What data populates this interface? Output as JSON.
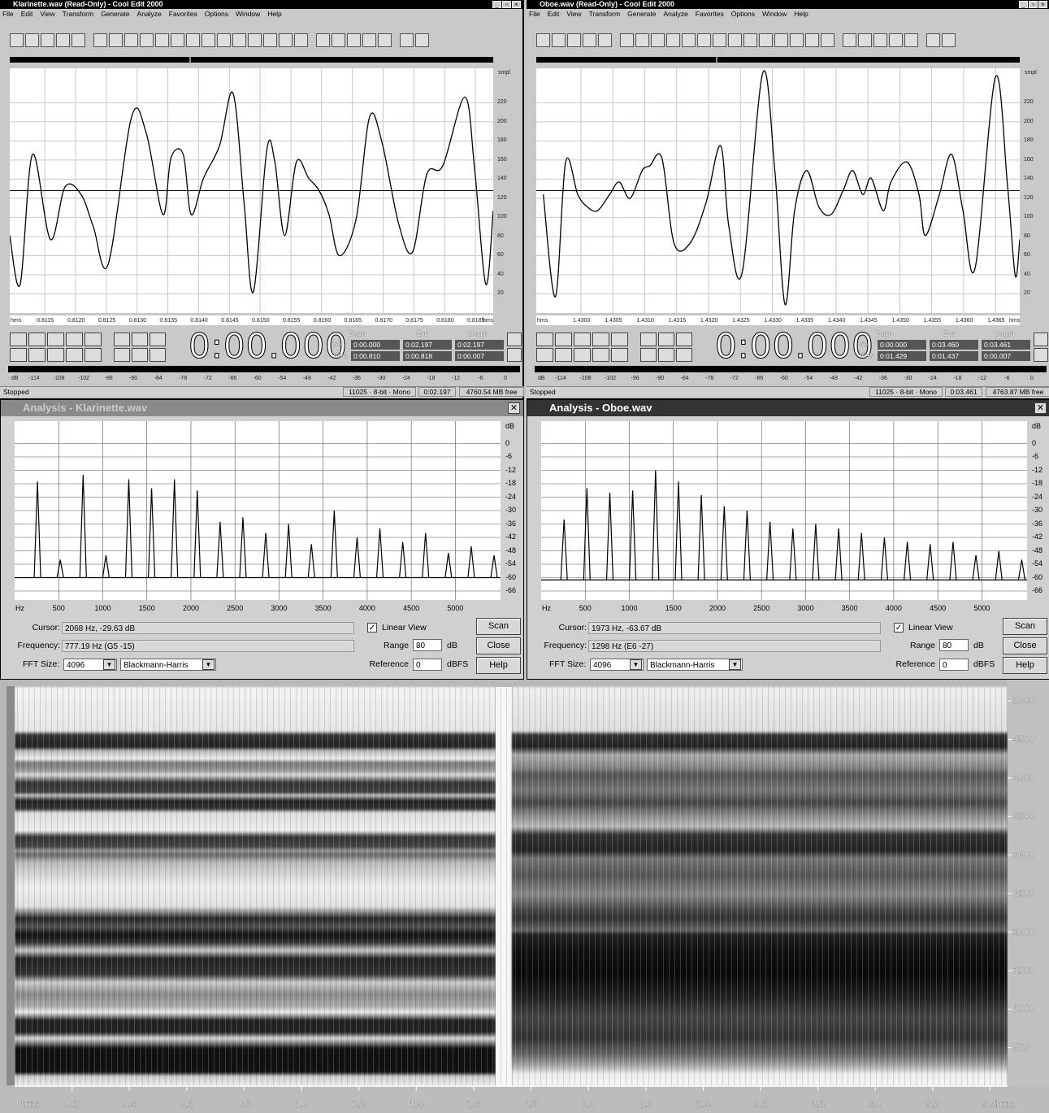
{
  "menu": [
    "File",
    "Edit",
    "View",
    "Transform",
    "Generate",
    "Analyze",
    "Favorites",
    "Options",
    "Window",
    "Help"
  ],
  "selection_headers": [
    "Begin",
    "End",
    "Length"
  ],
  "windows": [
    {
      "title": "Klarinette.wav (Read-Only) - Cool Edit 2000",
      "waveform": {
        "type": "line",
        "y_unit": "smpl",
        "x_unit": "hms",
        "ylim": [
          0,
          256
        ],
        "yticks": [
          220,
          200,
          180,
          160,
          140,
          120,
          100,
          80,
          60,
          40,
          20
        ],
        "xlim": [
          0.81093,
          0.81879
        ],
        "xticks": [
          0.8115,
          {
            "value": 0.812,
            "label": "0.8120"
          },
          0.8125,
          {
            "value": 0.813,
            "label": "0.8130"
          },
          0.8135,
          {
            "value": 0.814,
            "label": "0.8140"
          },
          0.8145,
          {
            "value": 0.815,
            "label": "0.8150"
          },
          0.8155,
          {
            "value": 0.816,
            "label": "0.8160"
          },
          0.8165,
          {
            "value": 0.817,
            "label": "0.8170"
          },
          0.8175,
          {
            "value": 0.818,
            "label": "0.8180"
          },
          0.8185
        ],
        "x": [
          0.81093,
          0.8111,
          0.8113,
          0.81159,
          0.81183,
          0.81209,
          0.81229,
          0.81253,
          0.81291,
          0.81315,
          0.81342,
          0.81355,
          0.81375,
          0.81388,
          0.81408,
          0.81434,
          0.81456,
          0.81474,
          0.81489,
          0.81511,
          0.81524,
          0.8154,
          0.81559,
          0.81579,
          0.81596,
          0.81612,
          0.81629,
          0.81656,
          0.81678,
          0.81698,
          0.81725,
          0.81748,
          0.81771,
          0.81797,
          0.81833,
          0.81849,
          0.81867,
          0.81879
        ],
        "values": [
          81,
          30,
          166,
          77,
          132,
          124,
          90,
          51,
          205,
          188,
          103,
          162,
          166,
          103,
          141,
          175,
          230,
          115,
          22,
          171,
          158,
          81,
          158,
          141,
          128,
          103,
          60,
          98,
          205,
          179,
          94,
          64,
          145,
          154,
          226,
          149,
          30,
          107
        ]
      },
      "time_display": "0:00.000",
      "selection": [
        {
          "label": "Sel",
          "values": [
            "0:00.000",
            "0:02.197",
            "0:02.197"
          ]
        },
        {
          "label": "View",
          "values": [
            "0:00.810",
            "0:00.818",
            "0:00.007"
          ]
        }
      ],
      "meter": {
        "unit": "dB",
        "ticks": [
          -114,
          -108,
          -102,
          -96,
          -90,
          -84,
          -78,
          -72,
          -66,
          -60,
          -54,
          -48,
          -42,
          -36,
          -30,
          -24,
          -18,
          -12,
          -6,
          0
        ]
      },
      "status": {
        "state": "Stopped",
        "format": "11025 · 8-bit · Mono",
        "length": "0:02.197",
        "free": "4760.54 MB free"
      },
      "analysis": {
        "title": "Analysis - Klarinette.wav",
        "spectrum": {
          "type": "line",
          "y_unit": "dB",
          "x_unit": "Hz",
          "ylim": [
            -70,
            10
          ],
          "yticks": [
            0,
            -6,
            -12,
            -18,
            -24,
            -30,
            -36,
            -42,
            -48,
            -54,
            -60,
            -66
          ],
          "xlim": [
            0,
            5512.5
          ],
          "xticks": [
            500,
            1000,
            1500,
            2000,
            2500,
            3000,
            3500,
            4000,
            4500,
            5000
          ],
          "floor": -60,
          "freqs": [
            259,
            518,
            777,
            1036,
            1295,
            1554,
            1813,
            2072,
            2331,
            2590,
            2849,
            3108,
            3367,
            3626,
            3885,
            4144,
            4403,
            4662,
            4921,
            5180,
            5439
          ],
          "peaks": [
            -17,
            -52,
            -14,
            -50,
            -16,
            -20,
            -16,
            -21,
            -35,
            -33,
            -40,
            -36,
            -45,
            -30,
            -42,
            -38,
            -44,
            -40,
            -49,
            -46,
            -50
          ]
        },
        "cursor_label": "Cursor:",
        "cursor": "2068 Hz, -29.63 dB",
        "frequency_label": "Frequency:",
        "frequency": "777.19 Hz (G5 -15)",
        "fft_label": "FFT Size:",
        "fft_size": "4096",
        "window_fn": "Blackmann-Harris",
        "linear_view": "Linear View",
        "range_label": "Range",
        "range": "80",
        "range_unit": "dB",
        "reference_label": "Reference",
        "reference": "0",
        "reference_unit": "dBFS",
        "buttons": [
          "Scan",
          "Close",
          "Help"
        ]
      }
    },
    {
      "title": "Oboe.wav (Read-Only) - Cool Edit 2000",
      "waveform": {
        "type": "line",
        "y_unit": "smpl",
        "x_unit": "hms",
        "ylim": [
          0,
          256
        ],
        "yticks": [
          220,
          200,
          180,
          160,
          140,
          120,
          100,
          80,
          60,
          40,
          20
        ],
        "xlim": [
          1.4293,
          1.43688
        ],
        "xticks": [
          {
            "value": 1.43,
            "label": "1.4300"
          },
          1.4305,
          {
            "value": 1.431,
            "label": "1.4310"
          },
          1.4315,
          {
            "value": 1.432,
            "label": "1.4320"
          },
          1.4325,
          {
            "value": 1.433,
            "label": "1.4330"
          },
          1.4335,
          {
            "value": 1.434,
            "label": "1.4340"
          },
          1.4345,
          {
            "value": 1.435,
            "label": "1.4350"
          },
          1.4355,
          {
            "value": 1.436,
            "label": "1.4360"
          },
          1.4365
        ],
        "x": [
          1.42941,
          1.4296,
          1.42976,
          1.42995,
          1.4301,
          1.43026,
          1.43045,
          1.4306,
          1.43077,
          1.43096,
          1.43108,
          1.43127,
          1.43146,
          1.43171,
          1.43196,
          1.43219,
          1.43232,
          1.43253,
          1.43285,
          1.43304,
          1.4332,
          1.43335,
          1.43354,
          1.43373,
          1.43392,
          1.43411,
          1.43426,
          1.43442,
          1.43455,
          1.43474,
          1.43486,
          1.43511,
          1.4353,
          1.4354,
          1.43562,
          1.43581,
          1.43599,
          1.43618,
          1.4365,
          1.43669,
          1.43681,
          1.43688
        ],
        "values": [
          124,
          17,
          158,
          124,
          111,
          107,
          124,
          137,
          120,
          149,
          154,
          162,
          73,
          73,
          115,
          175,
          90,
          43,
          251,
          149,
          9,
          107,
          149,
          111,
          103,
          128,
          149,
          124,
          141,
          107,
          137,
          158,
          124,
          81,
          124,
          166,
          107,
          47,
          247,
          132,
          39,
          77
        ]
      },
      "time_display": "0:00.000",
      "selection": [
        {
          "label": "Sel",
          "values": [
            "0:00.000",
            "0:03.460",
            "0:03.461"
          ]
        },
        {
          "label": "View",
          "values": [
            "0:01.429",
            "0:01.437",
            "0:00.007"
          ]
        }
      ],
      "meter": {
        "unit": "dB",
        "ticks": [
          -114,
          -108,
          -102,
          -96,
          -90,
          -84,
          -78,
          -72,
          -66,
          -60,
          -54,
          -48,
          -42,
          -36,
          -30,
          -24,
          -18,
          -12,
          -6,
          0
        ]
      },
      "status": {
        "state": "Stopped",
        "format": "11025 · 8-bit · Mono",
        "length": "0:03.461",
        "free": "4763.87 MB free"
      },
      "analysis": {
        "title": "Analysis - Oboe.wav",
        "spectrum": {
          "type": "line",
          "y_unit": "dB",
          "x_unit": "Hz",
          "ylim": [
            -70,
            10
          ],
          "yticks": [
            0,
            -6,
            -12,
            -18,
            -24,
            -30,
            -36,
            -42,
            -48,
            -54,
            -60,
            -66
          ],
          "xlim": [
            0,
            5512.5
          ],
          "xticks": [
            500,
            1000,
            1500,
            2000,
            2500,
            3000,
            3500,
            4000,
            4500,
            5000
          ],
          "floor": -61,
          "freqs": [
            260,
            519,
            779,
            1038,
            1298,
            1558,
            1817,
            2077,
            2336,
            2596,
            2856,
            3115,
            3375,
            3634,
            3894,
            4154,
            4413,
            4673,
            4932,
            5192,
            5452
          ],
          "peaks": [
            -34,
            -20,
            -22,
            -21,
            -12,
            -17,
            -23,
            -28,
            -30,
            -35,
            -38,
            -36,
            -38,
            -40,
            -42,
            -44,
            -45,
            -44,
            -50,
            -48,
            -52
          ]
        },
        "cursor_label": "Cursor:",
        "cursor": "1973 Hz, -63.67 dB",
        "frequency_label": "Frequency:",
        "frequency": "1298 Hz (E6 -27)",
        "fft_label": "FFT Size:",
        "fft_size": "4096",
        "window_fn": "Blackmann-Harris",
        "linear_view": "Linear View",
        "range_label": "Range",
        "range": "80",
        "range_unit": "dB",
        "reference_label": "Reference",
        "reference": "0",
        "reference_unit": "dBFS",
        "buttons": [
          "Scan",
          "Close",
          "Help"
        ]
      }
    }
  ],
  "spectrogram": {
    "type": "heatmap",
    "x_unit": "hms",
    "xlim": [
      0,
      3.461
    ],
    "xticks": [
      0.2,
      0.4,
      0.6,
      0.8,
      {
        "value": 1,
        "label": "1.0"
      },
      1.2,
      1.4,
      1.6,
      1.8,
      {
        "value": 2,
        "label": "2.0"
      },
      2.2,
      2.4,
      2.6,
      2.8,
      {
        "value": 3,
        "label": "3.0"
      },
      3.2,
      3.4
    ],
    "ylim": [
      0,
      5180
    ],
    "yticks": [
      5000,
      4500,
      4000,
      3500,
      3000,
      2500,
      2000,
      1500,
      1000,
      500
    ]
  }
}
